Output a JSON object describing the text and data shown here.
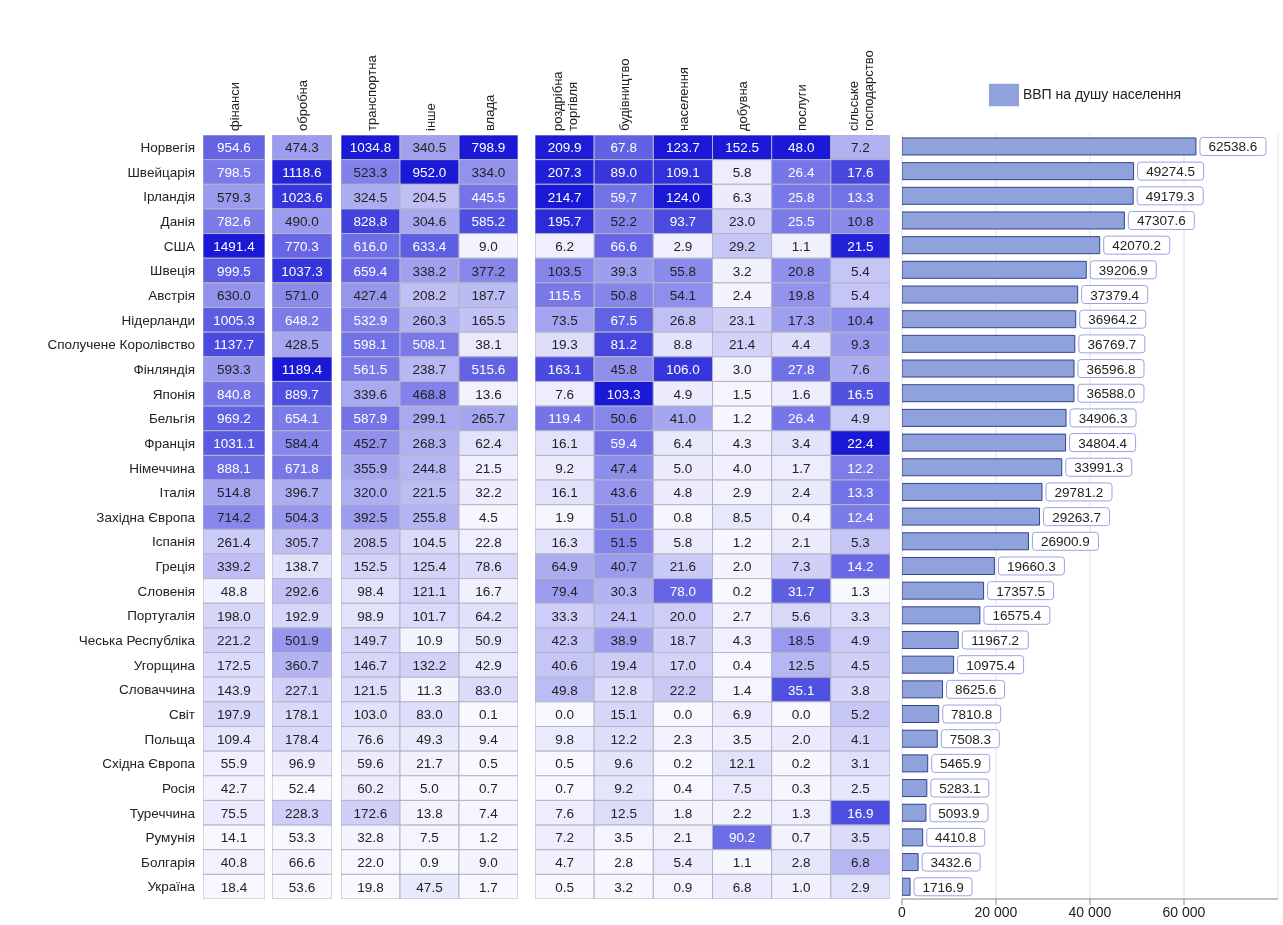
{
  "chart_data": [
    {
      "type": "heatmap",
      "categories": [
        "фінанси"
      ],
      "y_categories": [
        "Норвегія",
        "Швейцарія",
        "Ірландія",
        "Данія",
        "США",
        "Швеція",
        "Австрія",
        "Нідерланди",
        "Сполучене Королівство",
        "Фінляндія",
        "Японія",
        "Бельгія",
        "Франція",
        "Німеччина",
        "Італія",
        "Західна Європа",
        "Іспанія",
        "Греція",
        "Словенія",
        "Португалія",
        "Чеська Республіка",
        "Угорщина",
        "Словаччина",
        "Світ",
        "Польща",
        "Східна Європа",
        "Росія",
        "Туреччина",
        "Румунія",
        "Болгарія",
        "Україна"
      ],
      "cells": [
        [
          954.6
        ],
        [
          798.5
        ],
        [
          579.3
        ],
        [
          782.6
        ],
        [
          1491.4
        ],
        [
          999.5
        ],
        [
          630.0
        ],
        [
          1005.3
        ],
        [
          1137.7
        ],
        [
          593.3
        ],
        [
          840.8
        ],
        [
          969.2
        ],
        [
          1031.1
        ],
        [
          888.1
        ],
        [
          514.8
        ],
        [
          714.2
        ],
        [
          261.4
        ],
        [
          339.2
        ],
        [
          48.8
        ],
        [
          198.0
        ],
        [
          221.2
        ],
        [
          172.5
        ],
        [
          143.9
        ],
        [
          197.9
        ],
        [
          109.4
        ],
        [
          55.9
        ],
        [
          42.7
        ],
        [
          75.5
        ],
        [
          14.1
        ],
        [
          40.8
        ],
        [
          18.4
        ]
      ],
      "cell_labels": [
        [
          "954.6"
        ],
        [
          "798.5"
        ],
        [
          "579.3"
        ],
        [
          "782.6"
        ],
        [
          "1491.4"
        ],
        [
          "999.5"
        ],
        [
          "630.0"
        ],
        [
          "1005.3"
        ],
        [
          "1137.7"
        ],
        [
          "593.3"
        ],
        [
          "840.8"
        ],
        [
          "969.2"
        ],
        [
          "1031.1"
        ],
        [
          "888.1"
        ],
        [
          "514.8"
        ],
        [
          "714.2"
        ],
        [
          "261.4"
        ],
        [
          "339.2"
        ],
        [
          "48.8"
        ],
        [
          "198.0"
        ],
        [
          "221.2"
        ],
        [
          "172.5"
        ],
        [
          "143.9"
        ],
        [
          "197.9"
        ],
        [
          "109.4"
        ],
        [
          "55.9"
        ],
        [
          "42.7"
        ],
        [
          "75.5"
        ],
        [
          "14.1"
        ],
        [
          "40.8"
        ],
        [
          "18.4"
        ]
      ]
    },
    {
      "type": "heatmap",
      "categories": [
        "обробна"
      ],
      "y_categories": [
        null,
        null,
        null,
        null,
        null,
        null,
        null,
        null,
        null,
        null,
        null,
        null,
        null,
        null,
        null,
        null,
        null,
        null,
        null,
        null,
        null,
        null,
        null,
        null,
        null,
        null,
        null,
        null,
        null,
        null,
        null
      ],
      "tick_labels": "x",
      "cells": [
        [
          474.3
        ],
        [
          1118.6
        ],
        [
          1023.6
        ],
        [
          490.0
        ],
        [
          770.3
        ],
        [
          1037.3
        ],
        [
          571.0
        ],
        [
          648.2
        ],
        [
          428.5
        ],
        [
          1189.4
        ],
        [
          889.7
        ],
        [
          654.1
        ],
        [
          584.4
        ],
        [
          671.8
        ],
        [
          396.7
        ],
        [
          504.3
        ],
        [
          305.7
        ],
        [
          138.7
        ],
        [
          292.6
        ],
        [
          192.9
        ],
        [
          501.9
        ],
        [
          360.7
        ],
        [
          227.1
        ],
        [
          178.1
        ],
        [
          178.4
        ],
        [
          96.9
        ],
        [
          52.4
        ],
        [
          228.3
        ],
        [
          53.3
        ],
        [
          66.6
        ],
        [
          53.6
        ]
      ],
      "cell_labels": [
        [
          "474.3"
        ],
        [
          "1118.6"
        ],
        [
          "1023.6"
        ],
        [
          "490.0"
        ],
        [
          "770.3"
        ],
        [
          "1037.3"
        ],
        [
          "571.0"
        ],
        [
          "648.2"
        ],
        [
          "428.5"
        ],
        [
          "1189.4"
        ],
        [
          "889.7"
        ],
        [
          "654.1"
        ],
        [
          "584.4"
        ],
        [
          "671.8"
        ],
        [
          "396.7"
        ],
        [
          "504.3"
        ],
        [
          "305.7"
        ],
        [
          "138.7"
        ],
        [
          "292.6"
        ],
        [
          "192.9"
        ],
        [
          "501.9"
        ],
        [
          "360.7"
        ],
        [
          "227.1"
        ],
        [
          "178.1"
        ],
        [
          "178.4"
        ],
        [
          "96.9"
        ],
        [
          "52.4"
        ],
        [
          "228.3"
        ],
        [
          "53.3"
        ],
        [
          "66.6"
        ],
        [
          "53.6"
        ]
      ]
    },
    {
      "type": "heatmap",
      "categories": [
        "транспортна",
        "інше",
        "влада"
      ],
      "y_categories": [
        null,
        null,
        null,
        null,
        null,
        null,
        null,
        null,
        null,
        null,
        null,
        null,
        null,
        null,
        null,
        null,
        null,
        null,
        null,
        null,
        null,
        null,
        null,
        null,
        null,
        null,
        null,
        null,
        null,
        null,
        null
      ],
      "tick_labels": "x",
      "cells": [
        [
          1034.8,
          340.5,
          798.9
        ],
        [
          523.3,
          952.0,
          334.0
        ],
        [
          324.5,
          204.5,
          445.5
        ],
        [
          828.8,
          304.6,
          585.2
        ],
        [
          616.0,
          633.4,
          9.0
        ],
        [
          659.4,
          338.2,
          377.2
        ],
        [
          427.4,
          208.2,
          187.7
        ],
        [
          532.9,
          260.3,
          165.5
        ],
        [
          598.1,
          508.1,
          38.1
        ],
        [
          561.5,
          238.7,
          515.6
        ],
        [
          339.6,
          468.8,
          13.6
        ],
        [
          587.9,
          299.1,
          265.7
        ],
        [
          452.7,
          268.3,
          62.4
        ],
        [
          355.9,
          244.8,
          21.5
        ],
        [
          320.0,
          221.5,
          32.2
        ],
        [
          392.5,
          255.8,
          4.5
        ],
        [
          208.5,
          104.5,
          22.8
        ],
        [
          152.5,
          125.4,
          78.6
        ],
        [
          98.4,
          121.1,
          16.7
        ],
        [
          98.9,
          101.7,
          64.2
        ],
        [
          149.7,
          10.9,
          50.9
        ],
        [
          146.7,
          132.2,
          42.9
        ],
        [
          121.5,
          11.3,
          83.0
        ],
        [
          103.0,
          83.0,
          0.1
        ],
        [
          76.6,
          49.3,
          9.4
        ],
        [
          59.6,
          21.7,
          0.5
        ],
        [
          60.2,
          5.0,
          0.7
        ],
        [
          172.6,
          13.8,
          7.4
        ],
        [
          32.8,
          7.5,
          1.2
        ],
        [
          22.0,
          0.9,
          9.0
        ],
        [
          19.8,
          47.5,
          1.7
        ]
      ],
      "cell_labels": [
        [
          "1034.8",
          "340.5",
          "798.9"
        ],
        [
          "523.3",
          "952.0",
          "334.0"
        ],
        [
          "324.5",
          "204.5",
          "445.5"
        ],
        [
          "828.8",
          "304.6",
          "585.2"
        ],
        [
          "616.0",
          "633.4",
          "9.0"
        ],
        [
          "659.4",
          "338.2",
          "377.2"
        ],
        [
          "427.4",
          "208.2",
          "187.7"
        ],
        [
          "532.9",
          "260.3",
          "165.5"
        ],
        [
          "598.1",
          "508.1",
          "38.1"
        ],
        [
          "561.5",
          "238.7",
          "515.6"
        ],
        [
          "339.6",
          "468.8",
          "13.6"
        ],
        [
          "587.9",
          "299.1",
          "265.7"
        ],
        [
          "452.7",
          "268.3",
          "62.4"
        ],
        [
          "355.9",
          "244.8",
          "21.5"
        ],
        [
          "320.0",
          "221.5",
          "32.2"
        ],
        [
          "392.5",
          "255.8",
          "4.5"
        ],
        [
          "208.5",
          "104.5",
          "22.8"
        ],
        [
          "152.5",
          "125.4",
          "78.6"
        ],
        [
          "98.4",
          "121.1",
          "16.7"
        ],
        [
          "98.9",
          "101.7",
          "64.2"
        ],
        [
          "149.7",
          "10.9",
          "50.9"
        ],
        [
          "146.7",
          "132.2",
          "42.9"
        ],
        [
          "121.5",
          "11.3",
          "83.0"
        ],
        [
          "103.0",
          "83.0",
          "0.1"
        ],
        [
          "76.6",
          "49.3",
          "9.4"
        ],
        [
          "59.6",
          "21.7",
          "0.5"
        ],
        [
          "60.2",
          "5.0",
          "0.7"
        ],
        [
          "172.6",
          "13.8",
          "7.4"
        ],
        [
          "32.8",
          "7.5",
          "1.2"
        ],
        [
          "22.0",
          "0.9",
          "9.0"
        ],
        [
          "19.8",
          "47.5",
          "1.7"
        ]
      ]
    },
    {
      "type": "heatmap",
      "categories": [
        "роздрібна торгівля",
        "будівництво",
        "населення",
        "добувна",
        "послуги",
        "сільське господарство"
      ],
      "y_categories": [
        null,
        null,
        null,
        null,
        null,
        null,
        null,
        null,
        null,
        null,
        null,
        null,
        null,
        null,
        null,
        null,
        null,
        null,
        null,
        null,
        null,
        null,
        null,
        null,
        null,
        null,
        null,
        null,
        null,
        null,
        null
      ],
      "tick_labels": "x",
      "cells": [
        [
          209.9,
          67.8,
          123.7,
          152.5,
          48.0,
          7.2
        ],
        [
          207.3,
          89.0,
          109.1,
          5.8,
          26.4,
          17.6
        ],
        [
          214.7,
          59.7,
          124.0,
          6.3,
          25.8,
          13.3
        ],
        [
          195.7,
          52.2,
          93.7,
          23.0,
          25.5,
          10.8
        ],
        [
          6.2,
          66.6,
          2.9,
          29.2,
          1.1,
          21.5
        ],
        [
          103.5,
          39.3,
          55.8,
          3.2,
          20.8,
          5.4
        ],
        [
          115.5,
          50.8,
          54.1,
          2.4,
          19.8,
          5.4
        ],
        [
          73.5,
          67.5,
          26.8,
          23.1,
          17.3,
          10.4
        ],
        [
          19.3,
          81.2,
          8.8,
          21.4,
          4.4,
          9.3
        ],
        [
          163.1,
          45.8,
          106.0,
          3.0,
          27.8,
          7.6
        ],
        [
          7.6,
          103.3,
          4.9,
          1.5,
          1.6,
          16.5
        ],
        [
          119.4,
          50.6,
          41.0,
          1.2,
          26.4,
          4.9
        ],
        [
          16.1,
          59.4,
          6.4,
          4.3,
          3.4,
          22.4
        ],
        [
          9.2,
          47.4,
          5.0,
          4.0,
          1.7,
          12.2
        ],
        [
          16.1,
          43.6,
          4.8,
          2.9,
          2.4,
          13.3
        ],
        [
          1.9,
          51.0,
          0.8,
          8.5,
          0.4,
          12.4
        ],
        [
          16.3,
          51.5,
          5.8,
          1.2,
          2.1,
          5.3
        ],
        [
          64.9,
          40.7,
          21.6,
          2.0,
          7.3,
          14.2
        ],
        [
          79.4,
          30.3,
          78.0,
          0.2,
          31.7,
          1.3
        ],
        [
          33.3,
          24.1,
          20.0,
          2.7,
          5.6,
          3.3
        ],
        [
          42.3,
          38.9,
          18.7,
          4.3,
          18.5,
          4.9
        ],
        [
          40.6,
          19.4,
          17.0,
          0.4,
          12.5,
          4.5
        ],
        [
          49.8,
          12.8,
          22.2,
          1.4,
          35.1,
          3.8
        ],
        [
          0.0,
          15.1,
          0.0,
          6.9,
          0.0,
          5.2
        ],
        [
          9.8,
          12.2,
          2.3,
          3.5,
          2.0,
          4.1
        ],
        [
          0.5,
          9.6,
          0.2,
          12.1,
          0.2,
          3.1
        ],
        [
          0.7,
          9.2,
          0.4,
          7.5,
          0.3,
          2.5
        ],
        [
          7.6,
          12.5,
          1.8,
          2.2,
          1.3,
          16.9
        ],
        [
          7.2,
          3.5,
          2.1,
          90.2,
          0.7,
          3.5
        ],
        [
          4.7,
          2.8,
          5.4,
          1.1,
          2.8,
          6.8
        ],
        [
          0.5,
          3.2,
          0.9,
          6.8,
          1.0,
          2.9
        ]
      ],
      "cell_labels": [
        [
          "209.9",
          "67.8",
          "123.7",
          "152.5",
          "48.0",
          "7.2"
        ],
        [
          "207.3",
          "89.0",
          "109.1",
          "5.8",
          "26.4",
          "17.6"
        ],
        [
          "214.7",
          "59.7",
          "124.0",
          "6.3",
          "25.8",
          "13.3"
        ],
        [
          "195.7",
          "52.2",
          "93.7",
          "23.0",
          "25.5",
          "10.8"
        ],
        [
          "6.2",
          "66.6",
          "2.9",
          "29.2",
          "1.1",
          "21.5"
        ],
        [
          "103.5",
          "39.3",
          "55.8",
          "3.2",
          "20.8",
          "5.4"
        ],
        [
          "115.5",
          "50.8",
          "54.1",
          "2.4",
          "19.8",
          "5.4"
        ],
        [
          "73.5",
          "67.5",
          "26.8",
          "23.1",
          "17.3",
          "10.4"
        ],
        [
          "19.3",
          "81.2",
          "8.8",
          "21.4",
          "4.4",
          "9.3"
        ],
        [
          "163.1",
          "45.8",
          "106.0",
          "3.0",
          "27.8",
          "7.6"
        ],
        [
          "7.6",
          "103.3",
          "4.9",
          "1.5",
          "1.6",
          "16.5"
        ],
        [
          "119.4",
          "50.6",
          "41.0",
          "1.2",
          "26.4",
          "4.9"
        ],
        [
          "16.1",
          "59.4",
          "6.4",
          "4.3",
          "3.4",
          "22.4"
        ],
        [
          "9.2",
          "47.4",
          "5.0",
          "4.0",
          "1.7",
          "12.2"
        ],
        [
          "16.1",
          "43.6",
          "4.8",
          "2.9",
          "2.4",
          "13.3"
        ],
        [
          "1.9",
          "51.0",
          "0.8",
          "8.5",
          "0.4",
          "12.4"
        ],
        [
          "16.3",
          "51.5",
          "5.8",
          "1.2",
          "2.1",
          "5.3"
        ],
        [
          "64.9",
          "40.7",
          "21.6",
          "2.0",
          "7.3",
          "14.2"
        ],
        [
          "79.4",
          "30.3",
          "78.0",
          "0.2",
          "31.7",
          "1.3"
        ],
        [
          "33.3",
          "24.1",
          "20.0",
          "2.7",
          "5.6",
          "3.3"
        ],
        [
          "42.3",
          "38.9",
          "18.7",
          "4.3",
          "18.5",
          "4.9"
        ],
        [
          "40.6",
          "19.4",
          "17.0",
          "0.4",
          "12.5",
          "4.5"
        ],
        [
          "49.8",
          "12.8",
          "22.2",
          "1.4",
          "35.1",
          "3.8"
        ],
        [
          "0.0",
          "15.1",
          "0.0",
          "6.9",
          "0.0",
          "5.2"
        ],
        [
          "9.8",
          "12.2",
          "2.3",
          "3.5",
          "2.0",
          "4.1"
        ],
        [
          "0.5",
          "9.6",
          "0.2",
          "12.1",
          "0.2",
          "3.1"
        ],
        [
          "0.7",
          "9.2",
          "0.4",
          "7.5",
          "0.3",
          "2.5"
        ],
        [
          "7.6",
          "12.5",
          "1.8",
          "2.2",
          "1.3",
          "16.9"
        ],
        [
          "7.2",
          "3.5",
          "2.1",
          "90.2",
          "0.7",
          "3.5"
        ],
        [
          "4.7",
          "2.8",
          "5.4",
          "1.1",
          "2.8",
          "6.8"
        ],
        [
          "0.5",
          "3.2",
          "0.9",
          "6.8",
          "1.0",
          "2.9"
        ]
      ]
    },
    {
      "type": "bar",
      "orientation": "horizontal",
      "categories": [
        null,
        null,
        null,
        null,
        null,
        null,
        null,
        null,
        null,
        null,
        null,
        null,
        null,
        null,
        null,
        null,
        null,
        null,
        null,
        null,
        null,
        null,
        null,
        null,
        null,
        null,
        null,
        null,
        null,
        null,
        null
      ],
      "tick_labels": "x",
      "grid": "x",
      "legend": "top",
      "xlim": [
        0,
        80000
      ],
      "xticks": [
        0,
        {
          "value": 20000,
          "label": "20 000"
        },
        {
          "value": 40000,
          "label": "40 000"
        },
        {
          "value": 60000,
          "label": "60 000"
        }
      ],
      "series": [
        {
          "name": "ВВП на душу населення",
          "color": "#8fa2dc",
          "values": [
            62538.6,
            49274.5,
            49179.3,
            47307.6,
            42070.2,
            39206.9,
            37379.4,
            36964.2,
            36769.7,
            36596.8,
            36588.0,
            34906.3,
            34804.4,
            33991.3,
            29781.2,
            29263.7,
            26900.9,
            19660.3,
            17357.5,
            16575.4,
            11967.2,
            10975.4,
            8625.6,
            7810.8,
            7508.3,
            5465.9,
            5283.1,
            5093.9,
            4410.8,
            3432.6,
            1716.9
          ],
          "value_labels": [
            "62538.6",
            "49274.5",
            "49179.3",
            "47307.6",
            "42070.2",
            "39206.9",
            "37379.4",
            "36964.2",
            "36769.7",
            "36596.8",
            "36588.0",
            "34906.3",
            "34804.4",
            "33991.3",
            "29781.2",
            "29263.7",
            "26900.9",
            "19660.3",
            "17357.5",
            "16575.4",
            "11967.2",
            "10975.4",
            "8625.6",
            "7810.8",
            "7508.3",
            "5465.9",
            "5283.1",
            "5093.9",
            "4410.8",
            "3432.6",
            "1716.9"
          ]
        }
      ]
    }
  ]
}
